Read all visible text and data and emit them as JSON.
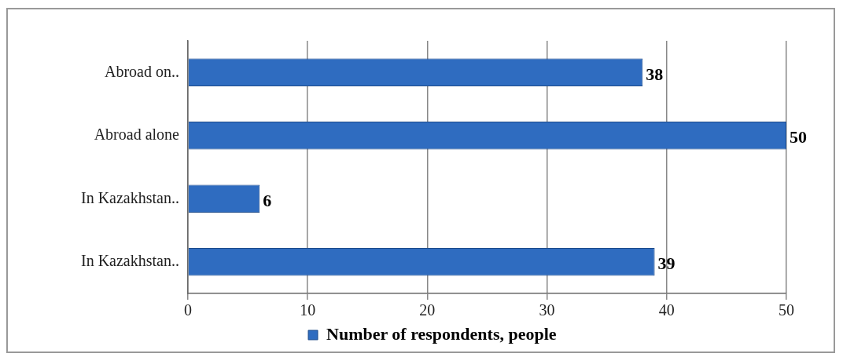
{
  "chart_data": {
    "type": "bar",
    "orientation": "horizontal",
    "categories": [
      "Abroad on..",
      "Abroad alone",
      "In Kazakhstan..",
      "In Kazakhstan.."
    ],
    "series": [
      {
        "name": "Number of respondents, people",
        "color": "#2f6cc0",
        "values": [
          38,
          50,
          6,
          39
        ]
      }
    ],
    "xlim": [
      0,
      50
    ],
    "xticks": [
      0,
      10,
      20,
      30,
      40,
      50
    ],
    "grid": "x",
    "legend": "bottom",
    "data_labels": true
  }
}
